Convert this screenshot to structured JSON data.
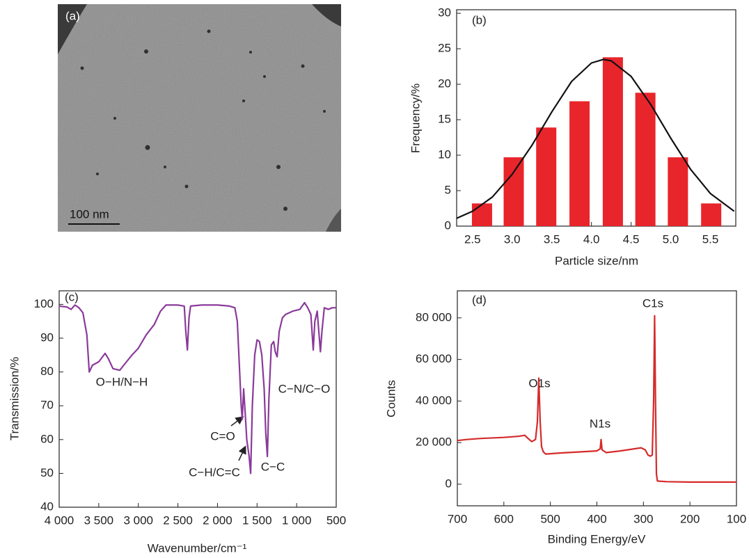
{
  "image_panel": {
    "label": "(a)",
    "scale_bar": "100 nm"
  },
  "chart_data": [
    {
      "type": "bar",
      "panel_label": "(b)",
      "xlabel": "Particle size/nm",
      "ylabel": "Frequency/%",
      "xlim": [
        2.3,
        5.82
      ],
      "ylim": [
        0,
        30.5
      ],
      "xticks": [
        2.5,
        {
          "value": 3,
          "label": "3.0"
        },
        3.5,
        {
          "value": 4,
          "label": "4.0"
        },
        4.5,
        {
          "value": 5,
          "label": "5.0"
        },
        5.5
      ],
      "yticks": [
        0,
        5,
        10,
        15,
        20,
        25,
        30
      ],
      "series": [
        {
          "type": "bar",
          "color": "#e8252b",
          "x": [
            2.62,
            3.02,
            3.43,
            3.85,
            4.27,
            4.68,
            5.09,
            5.51
          ],
          "values": [
            3.2,
            9.7,
            13.9,
            17.6,
            23.8,
            18.8,
            9.7,
            3.2
          ]
        },
        {
          "type": "line",
          "color": "#111111",
          "x": [
            2.3,
            2.5,
            2.75,
            3.0,
            3.25,
            3.5,
            3.75,
            4.0,
            4.15,
            4.25,
            4.5,
            4.75,
            5.0,
            5.25,
            5.5,
            5.8
          ],
          "values": [
            1.1,
            2.1,
            4.1,
            7.3,
            11.4,
            16.1,
            20.4,
            23.0,
            23.5,
            23.3,
            21.1,
            17.1,
            12.4,
            8.0,
            4.6,
            2.1
          ]
        }
      ],
      "annotations": []
    },
    {
      "type": "line",
      "panel_label": "(c)",
      "xlabel": "Wavenumber/cm⁻¹",
      "ylabel": "Transmission/%",
      "xlim": [
        4000,
        500
      ],
      "ylim": [
        40,
        104
      ],
      "xticks": [
        {
          "value": 4000,
          "label": "4 000"
        },
        {
          "value": 3500,
          "label": "3 500"
        },
        {
          "value": 3000,
          "label": "3 000"
        },
        {
          "value": 2500,
          "label": "2 500"
        },
        {
          "value": 2000,
          "label": "2 000"
        },
        {
          "value": 1500,
          "label": "1 500"
        },
        {
          "value": 1000,
          "label": "1 000"
        },
        500
      ],
      "yticks": [
        40,
        50,
        60,
        70,
        80,
        90,
        100
      ],
      "series": [
        {
          "type": "line",
          "color": "#8a3a9a",
          "x": [
            4000,
            3900,
            3850,
            3800,
            3750,
            3700,
            3650,
            3620,
            3580,
            3500,
            3420,
            3380,
            3320,
            3235,
            3150,
            3080,
            3000,
            2900,
            2800,
            2720,
            2650,
            2500,
            2420,
            2400,
            2380,
            2360,
            2340,
            2200,
            2000,
            1850,
            1780,
            1750,
            1720,
            1700,
            1687,
            1670,
            1650,
            1630,
            1600,
            1581,
            1560,
            1530,
            1500,
            1470,
            1440,
            1410,
            1390,
            1370,
            1350,
            1320,
            1290,
            1270,
            1247,
            1220,
            1180,
            1140,
            1050,
            960,
            900,
            860,
            820,
            790,
            770,
            740,
            700,
            680,
            650,
            600,
            550,
            500
          ],
          "values": [
            99.5,
            99.2,
            98.5,
            99.8,
            99.0,
            97.5,
            91,
            80,
            82,
            83,
            85.5,
            84,
            81,
            80.5,
            83,
            85,
            87,
            91,
            94,
            98,
            99.8,
            99.8,
            99.5,
            92,
            86.5,
            96,
            99.5,
            99.8,
            99.8,
            99.5,
            99,
            95,
            80,
            70,
            66,
            75,
            68,
            60,
            55,
            50,
            70,
            85,
            89.5,
            89,
            85,
            75,
            62,
            55,
            72,
            88,
            89,
            86,
            84.5,
            92,
            96,
            97,
            98,
            98.5,
            100.5,
            99,
            97,
            86.5,
            95,
            98,
            86,
            92,
            99,
            98.5,
            99,
            99
          ]
        }
      ],
      "annotations": [
        "O−H/N−H",
        "C=O",
        "C−H/C=C",
        "C−C",
        "C−N/C−O"
      ]
    },
    {
      "type": "line",
      "panel_label": "(d)",
      "xlabel": "Binding Energy/eV",
      "ylabel": "Counts",
      "xlim": [
        700,
        100
      ],
      "ylim": [
        -10400,
        93000
      ],
      "xticks": [
        700,
        600,
        500,
        400,
        300,
        200,
        100
      ],
      "yticks": [
        0,
        {
          "value": 20000,
          "label": "20 000"
        },
        {
          "value": 40000,
          "label": "40 000"
        },
        {
          "value": 60000,
          "label": "60 000"
        },
        {
          "value": 80000,
          "label": "80 000"
        }
      ],
      "series": [
        {
          "type": "line",
          "color": "#d52a2a",
          "x": [
            700,
            680,
            650,
            600,
            570,
            555,
            548,
            540,
            532,
            528,
            525,
            522,
            519,
            515,
            510,
            480,
            440,
            400,
            393,
            391,
            389,
            380,
            350,
            320,
            305,
            296,
            290,
            285,
            281,
            278,
            276,
            274,
            272,
            270,
            250,
            200,
            100
          ],
          "values": [
            21000,
            21500,
            22000,
            22500,
            23000,
            23500,
            22000,
            20500,
            21500,
            30000,
            51000,
            30000,
            18000,
            15500,
            14500,
            15000,
            15500,
            16000,
            17000,
            21500,
            16500,
            15200,
            16000,
            17000,
            17500,
            16500,
            14000,
            13500,
            14000,
            40000,
            81000,
            40000,
            5000,
            1500,
            1200,
            1000,
            1000
          ]
        }
      ],
      "annotations": [
        "O1s",
        "N1s",
        "C1s"
      ]
    }
  ]
}
